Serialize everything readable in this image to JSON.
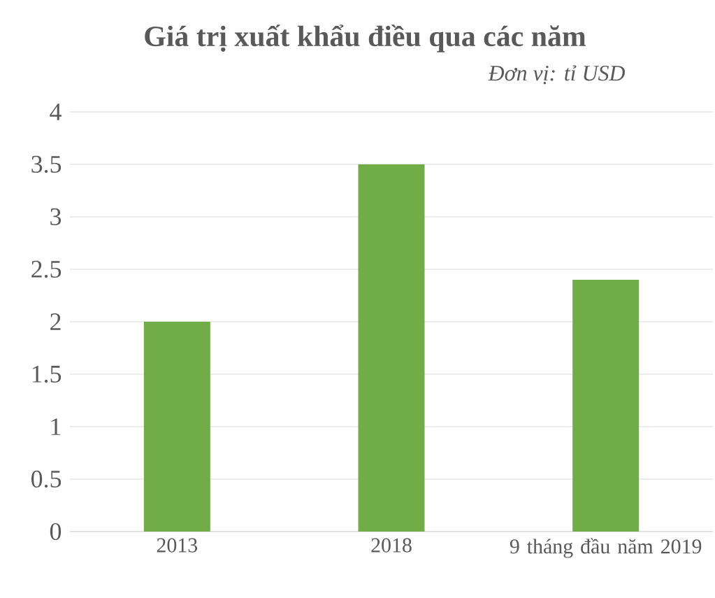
{
  "chart_data": {
    "type": "bar",
    "title": "Giá trị xuất khẩu điều qua các năm",
    "subtitle": "*Đơn vị: tỉ USD*",
    "categories": [
      "2013",
      "2018",
      "9 tháng đầu năm 2019"
    ],
    "values": [
      2,
      3.5,
      2.4
    ],
    "color": "#70ad47",
    "ylim": [
      0,
      4
    ],
    "yticks": [
      0,
      0.5,
      1,
      1.5,
      2,
      2.5,
      3,
      3.5,
      4
    ],
    "grid": "y"
  }
}
